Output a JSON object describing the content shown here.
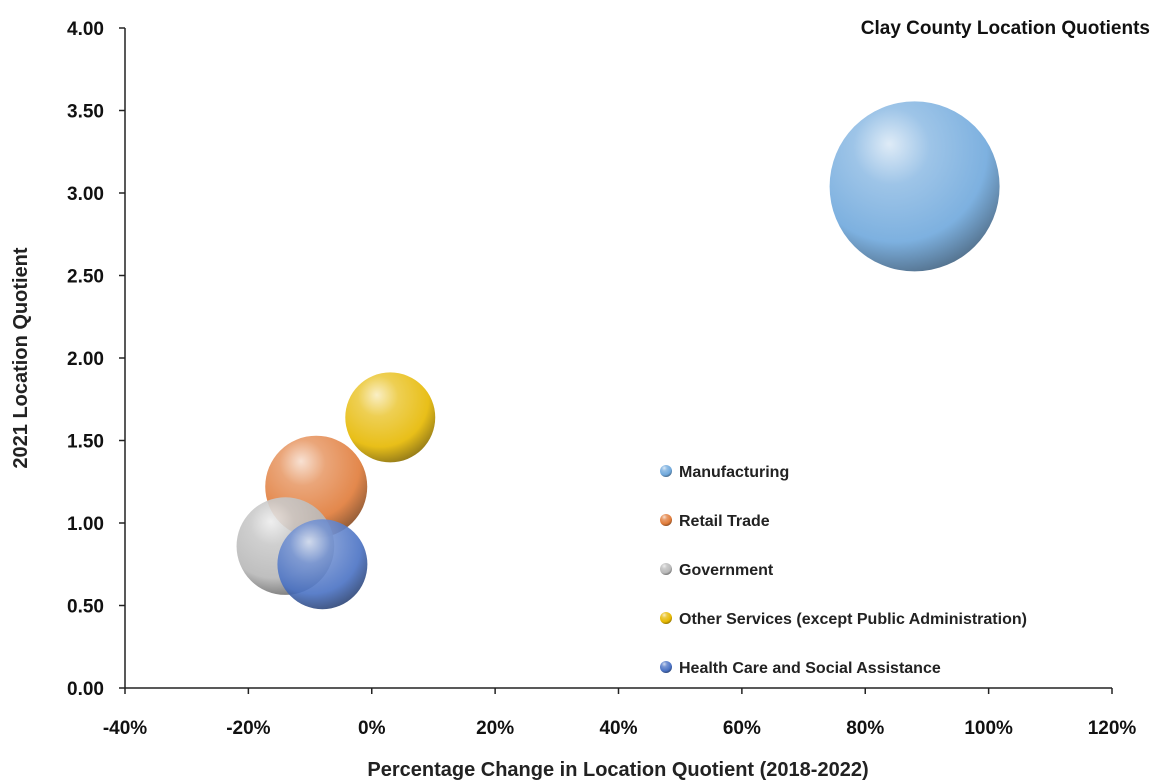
{
  "chart_data": {
    "type": "bubble",
    "title": "Clay County Location Quotients",
    "xlabel": "Percentage Change in Location Quotient (2018-2022)",
    "ylabel": "2021 Location Quotient",
    "xlim": [
      -0.4,
      1.2
    ],
    "ylim": [
      0,
      4
    ],
    "x_ticks": [
      "-40%",
      "-20%",
      "0%",
      "20%",
      "40%",
      "60%",
      "80%",
      "100%",
      "120%"
    ],
    "y_ticks": [
      "0.00",
      "0.50",
      "1.00",
      "1.50",
      "2.00",
      "2.50",
      "3.00",
      "3.50",
      "4.00"
    ],
    "grid": false,
    "legend_position": "lower-right",
    "series": [
      {
        "name": "Manufacturing",
        "x": 0.88,
        "y": 3.04,
        "size": 100,
        "color": "#6fa8dc"
      },
      {
        "name": "Retail Trade",
        "x": -0.09,
        "y": 1.22,
        "size": 36,
        "color": "#e07b39"
      },
      {
        "name": "Government",
        "x": -0.14,
        "y": 0.86,
        "size": 33,
        "color": "#b8b8b8"
      },
      {
        "name": "Other Services (except Public Administration)",
        "x": 0.03,
        "y": 1.64,
        "size": 28,
        "color": "#e6b800"
      },
      {
        "name": "Health Care and Social Assistance",
        "x": -0.08,
        "y": 0.75,
        "size": 28,
        "color": "#4a72c4"
      }
    ]
  }
}
